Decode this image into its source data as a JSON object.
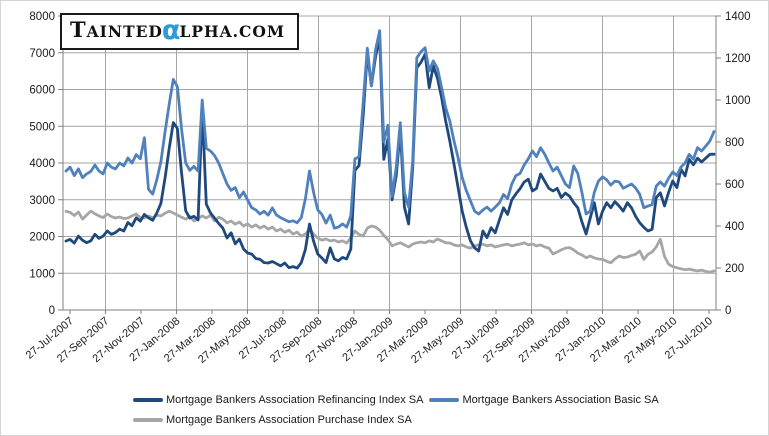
{
  "logo": {
    "part1": "T",
    "part2": "AINTED",
    "alpha": "α",
    "part3": "LPHA.COM",
    "alpha_color": "#2E9AD6"
  },
  "chart_data": {
    "type": "line",
    "title": "",
    "legend_position": "bottom",
    "grid": {
      "horizontal": true,
      "vertical_every_other_tick": true
    },
    "x_axis": {
      "tick_labels": [
        "27-Jul-2007",
        "27-Sep-2007",
        "27-Nov-2007",
        "27-Jan-2008",
        "27-Mar-2008",
        "27-May-2008",
        "27-Jul-2008",
        "27-Sep-2008",
        "27-Nov-2008",
        "27-Jan-2009",
        "27-Mar-2009",
        "27-May-2009",
        "27-Jul-2009",
        "27-Sep-2009",
        "27-Nov-2009",
        "27-Jan-2010",
        "27-Mar-2010",
        "27-May-2010",
        "27-Jul-2010"
      ]
    },
    "left_axis": {
      "min": 0,
      "max": 8000,
      "step": 1000,
      "tick_labels": [
        "0",
        "1000",
        "2000",
        "3000",
        "4000",
        "5000",
        "6000",
        "7000",
        "8000"
      ]
    },
    "right_axis": {
      "min": 0,
      "max": 1400,
      "step": 200,
      "tick_labels": [
        "0",
        "200",
        "400",
        "600",
        "800",
        "1000",
        "1200",
        "1400"
      ]
    },
    "colors": {
      "gridline": "#A6A6A6",
      "axis": "#808080",
      "tick_text": "#1a1a1a"
    },
    "series": [
      {
        "name": "Mortgage Bankers Association Refinancing Index SA",
        "color": "#1F497D",
        "axis": "left",
        "values": [
          1878,
          1920,
          1820,
          2010,
          1900,
          1830,
          1880,
          2060,
          1950,
          2010,
          2150,
          2060,
          2110,
          2200,
          2150,
          2380,
          2290,
          2510,
          2420,
          2600,
          2510,
          2440,
          2640,
          2900,
          3600,
          4400,
          5100,
          4940,
          3720,
          2700,
          2500,
          2550,
          2450,
          5500,
          2880,
          2640,
          2500,
          2350,
          2230,
          1960,
          2100,
          1800,
          1930,
          1660,
          1550,
          1520,
          1400,
          1380,
          1290,
          1280,
          1320,
          1260,
          1200,
          1280,
          1150,
          1180,
          1140,
          1290,
          1650,
          2340,
          1870,
          1525,
          1415,
          1290,
          1690,
          1390,
          1340,
          1430,
          1390,
          1660,
          3800,
          3930,
          5300,
          7000,
          6100,
          6900,
          7400,
          4100,
          4650,
          3000,
          3650,
          4900,
          2800,
          2340,
          3870,
          6590,
          6740,
          6960,
          6050,
          6640,
          6300,
          5780,
          5140,
          4600,
          3970,
          3330,
          2690,
          2240,
          1880,
          1690,
          1605,
          2150,
          1970,
          2240,
          2100,
          2450,
          2780,
          2600,
          3000,
          3160,
          3300,
          3480,
          3560,
          3240,
          3310,
          3700,
          3500,
          3310,
          3240,
          3310,
          3060,
          3180,
          3100,
          2920,
          2780,
          2400,
          2068,
          2500,
          2920,
          2340,
          2690,
          2920,
          2780,
          2950,
          2830,
          2690,
          2920,
          2780,
          2550,
          2376,
          2250,
          2150,
          2195,
          3056,
          3190,
          2830,
          3200,
          3510,
          3330,
          3830,
          3650,
          4100,
          3950,
          4130,
          4030,
          4130,
          4236,
          4240
        ]
      },
      {
        "name": "Mortgage Bankers Association Basic SA",
        "color": "#4F81BD",
        "axis": "right",
        "values": [
          662,
          680,
          640,
          672,
          630,
          648,
          660,
          690,
          662,
          648,
          700,
          680,
          672,
          700,
          686,
          724,
          700,
          740,
          720,
          820,
          575,
          552,
          620,
          706,
          850,
          980,
          1098,
          1063,
          860,
          700,
          665,
          684,
          662,
          1000,
          770,
          757,
          735,
          700,
          650,
          600,
          570,
          583,
          535,
          562,
          524,
          487,
          476,
          457,
          470,
          452,
          486,
          452,
          440,
          430,
          420,
          425,
          415,
          440,
          530,
          662,
          560,
          476,
          455,
          414,
          452,
          390,
          395,
          410,
          395,
          448,
          719,
          730,
          990,
          1247,
          1067,
          1240,
          1330,
          800,
          880,
          540,
          680,
          892,
          560,
          490,
          710,
          1201,
          1230,
          1249,
          1138,
          1186,
          1150,
          1059,
          963,
          900,
          805,
          725,
          630,
          567,
          519,
          471,
          457,
          476,
          490,
          471,
          490,
          510,
          550,
          530,
          600,
          640,
          650,
          690,
          720,
          757,
          730,
          773,
          741,
          700,
          662,
          680,
          640,
          600,
          583,
          686,
          650,
          560,
          457,
          471,
          560,
          614,
          634,
          620,
          595,
          614,
          610,
          580,
          590,
          600,
          581,
          551,
          487,
          495,
          502,
          590,
          610,
          590,
          628,
          657,
          640,
          681,
          700,
          741,
          718,
          773,
          757,
          780,
          805,
          850
        ]
      },
      {
        "name": "Mortgage Bankers Association Purchase Index SA",
        "color": "#A6A6A6",
        "axis": "right",
        "values": [
          470,
          465,
          450,
          466,
          433,
          452,
          471,
          458,
          448,
          440,
          457,
          445,
          438,
          443,
          435,
          438,
          448,
          457,
          440,
          438,
          448,
          438,
          452,
          448,
          461,
          471,
          462,
          452,
          442,
          433,
          446,
          424,
          435,
          448,
          438,
          452,
          424,
          442,
          433,
          415,
          424,
          409,
          419,
          400,
          410,
          395,
          405,
          390,
          400,
          385,
          395,
          376,
          385,
          370,
          380,
          362,
          371,
          352,
          362,
          385,
          362,
          343,
          333,
          338,
          329,
          333,
          324,
          329,
          319,
          345,
          376,
          360,
          352,
          390,
          400,
          395,
          380,
          355,
          335,
          305,
          314,
          320,
          310,
          300,
          314,
          320,
          324,
          320,
          329,
          324,
          338,
          329,
          320,
          319,
          310,
          305,
          310,
          300,
          295,
          305,
          310,
          314,
          305,
          310,
          300,
          305,
          310,
          314,
          305,
          310,
          314,
          320,
          310,
          314,
          305,
          310,
          300,
          295,
          267,
          276,
          286,
          295,
          297,
          286,
          271,
          262,
          249,
          257,
          248,
          243,
          241,
          232,
          225,
          243,
          257,
          250,
          252,
          260,
          265,
          281,
          241,
          265,
          276,
          300,
          337,
          255,
          218,
          207,
          201,
          196,
          192,
          195,
          190,
          186,
          190,
          184,
          180,
          186
        ]
      }
    ]
  }
}
